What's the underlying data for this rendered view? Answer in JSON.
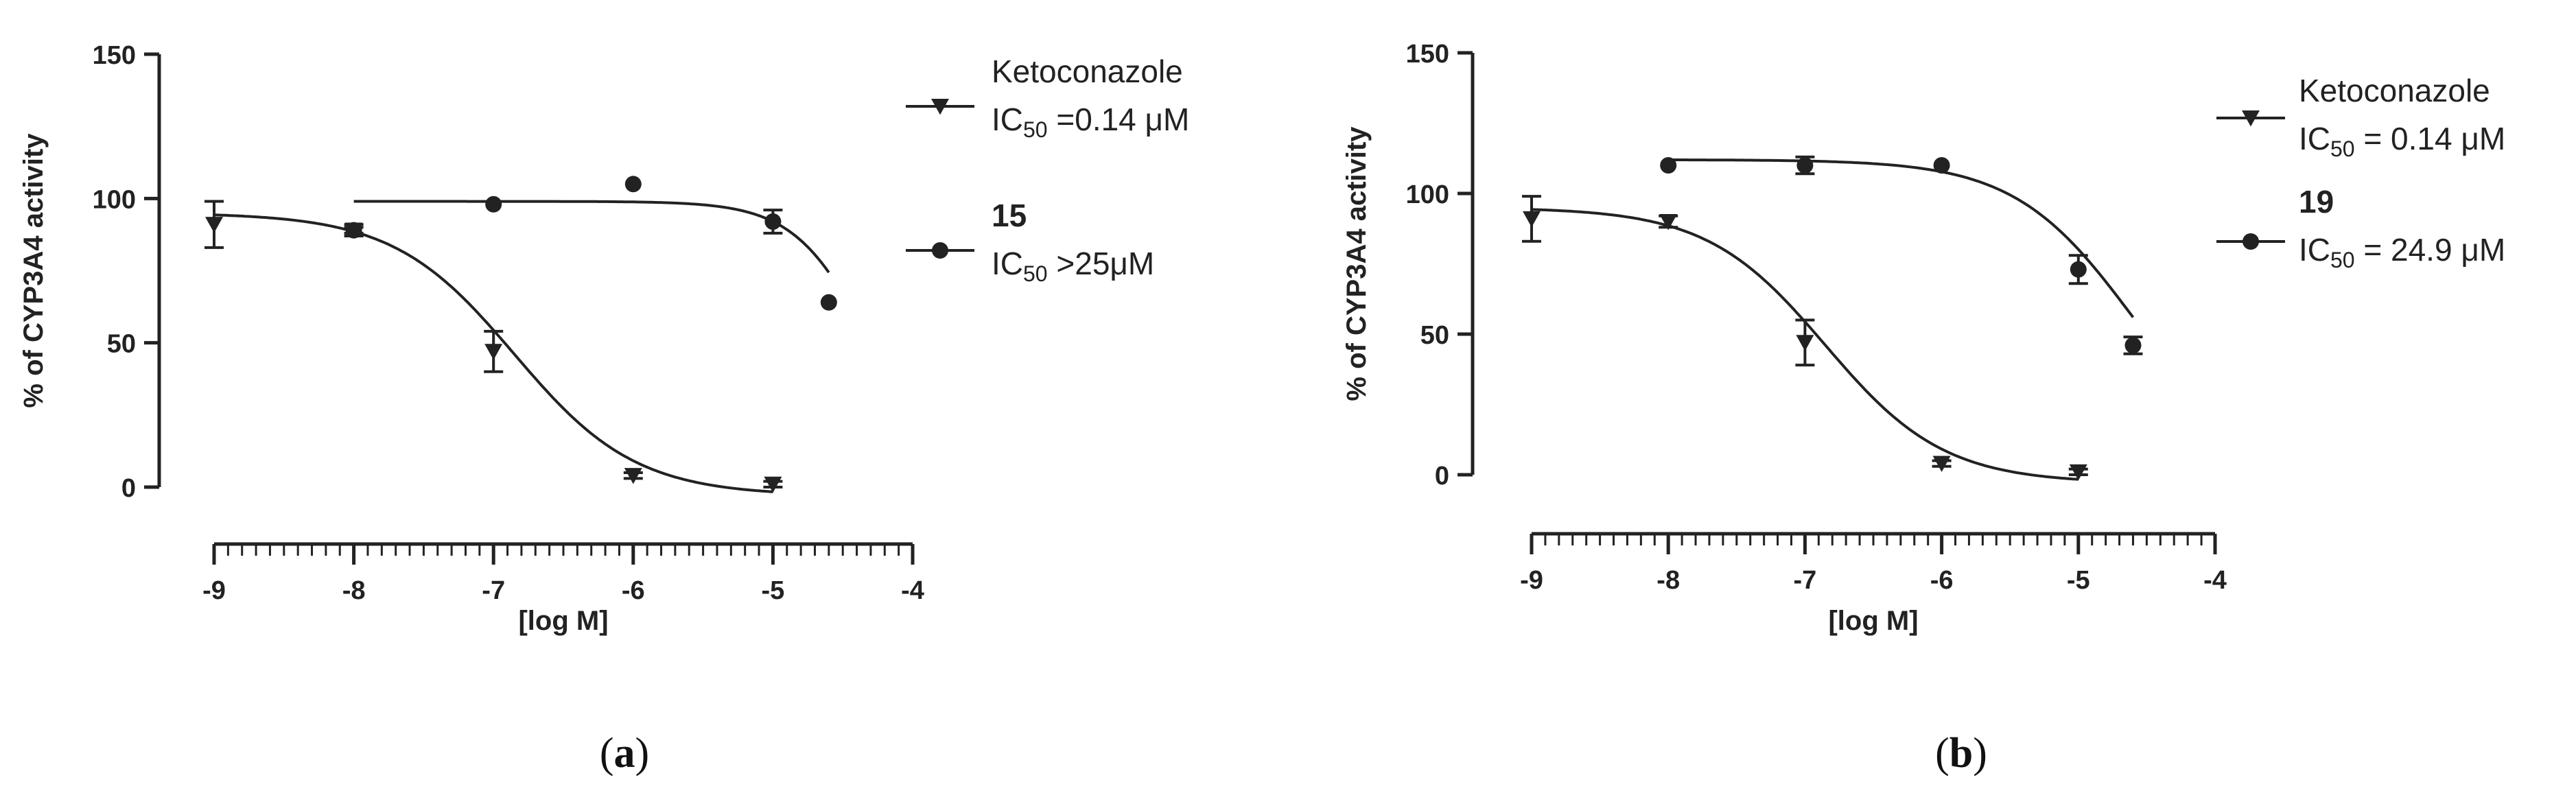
{
  "chart_data": [
    {
      "type": "scatter",
      "panel_label": "a",
      "xlabel": "[log M]",
      "ylabel": "% of CYP3A4 activity",
      "xlim": [
        -9,
        -4
      ],
      "ylim": [
        0,
        150
      ],
      "xticks": [
        "-9",
        "-8",
        "-7",
        "-6",
        "-5",
        "-4"
      ],
      "yticks": [
        "0",
        "50",
        "100",
        "150"
      ],
      "x_minor_ticks_per_major": 10,
      "grid": false,
      "legend_position": "right",
      "series": [
        {
          "name": "Ketoconazole",
          "marker": "triangle-down",
          "ic50_prefix": "IC",
          "ic50_sub": "50",
          "ic50_value": " =0.14 μM",
          "x": [
            -9,
            -8,
            -7,
            -6,
            -5
          ],
          "y": [
            91,
            89,
            47,
            4,
            1
          ],
          "err": [
            8,
            2,
            7,
            1,
            1
          ],
          "fit": {
            "top": 95,
            "bottom": -3,
            "logIC50": -6.85,
            "hill": 1
          }
        },
        {
          "name": "15",
          "marker": "circle",
          "ic50_prefix": "IC",
          "ic50_sub": "50",
          "ic50_value": " >25μM",
          "x": [
            -8,
            -7,
            -6,
            -5,
            -4.6
          ],
          "y": [
            89,
            98,
            105,
            92,
            64
          ],
          "err": [
            1,
            0,
            0,
            4,
            0
          ],
          "fit": {
            "top": 99,
            "bottom": 0,
            "logIC50": -4.3,
            "hill": 1.6,
            "from": -8,
            "to": -4.6
          }
        }
      ]
    },
    {
      "type": "scatter",
      "panel_label": "b",
      "xlabel": "[log M]",
      "ylabel": "% of CYP3A4 activity",
      "xlim": [
        -9,
        -4
      ],
      "ylim": [
        0,
        150
      ],
      "xticks": [
        "-9",
        "-8",
        "-7",
        "-6",
        "-5",
        "-4"
      ],
      "yticks": [
        "0",
        "50",
        "100",
        "150"
      ],
      "x_minor_ticks_per_major": 10,
      "grid": false,
      "legend_position": "right",
      "series": [
        {
          "name": "Ketoconazole",
          "marker": "triangle-down",
          "ic50_prefix": "IC",
          "ic50_sub": "50",
          "ic50_value": " = 0.14 μM",
          "x": [
            -9,
            -8,
            -7,
            -6,
            -5
          ],
          "y": [
            91,
            90,
            47,
            4,
            1
          ],
          "err": [
            8,
            2,
            8,
            1,
            1
          ],
          "fit": {
            "top": 95,
            "bottom": -3,
            "logIC50": -6.85,
            "hill": 1
          }
        },
        {
          "name": "19",
          "marker": "circle",
          "ic50_prefix": "IC",
          "ic50_sub": "50",
          "ic50_value": " = 24.9 μM",
          "x": [
            -8,
            -7,
            -6,
            -5,
            -4.6
          ],
          "y": [
            110,
            110,
            110,
            73,
            46
          ],
          "err": [
            0,
            3,
            0,
            5,
            3
          ],
          "fit": {
            "top": 112,
            "bottom": 0,
            "logIC50": -4.6,
            "hill": 1,
            "from": -8,
            "to": -4.6
          }
        }
      ]
    }
  ]
}
